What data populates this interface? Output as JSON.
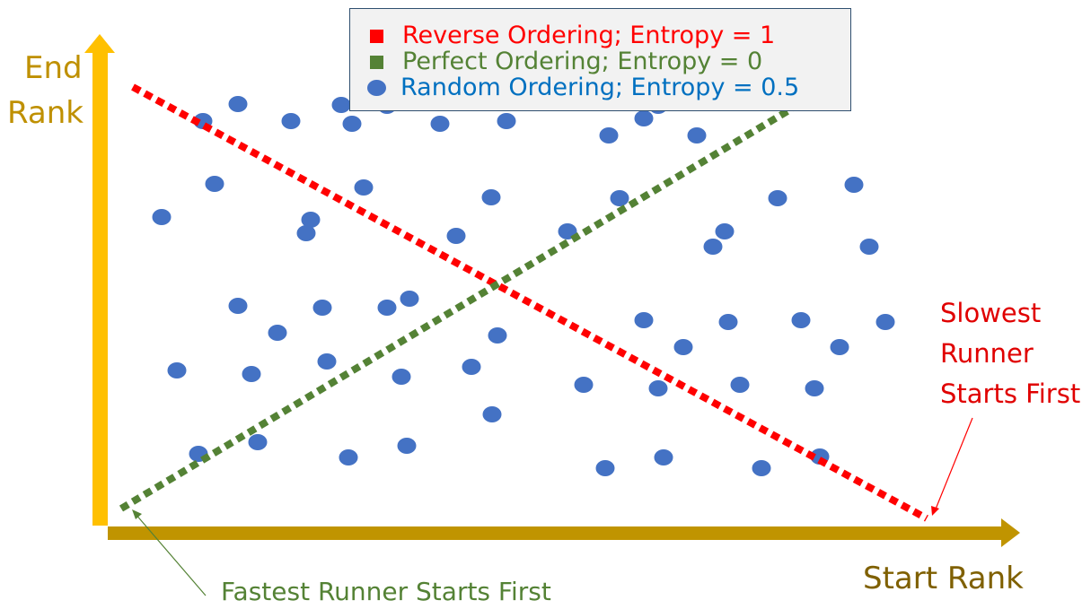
{
  "axes": {
    "y_label_line1": "End",
    "y_label_line2": "Rank",
    "x_label": "Start Rank",
    "axis_color": "#c09400",
    "y_axis_color": "#ffc000"
  },
  "legend": {
    "items": [
      {
        "label": "Reverse Ordering; Entropy = 1",
        "color": "#ff0000",
        "marker": "square"
      },
      {
        "label": "Perfect Ordering; Entropy = 0",
        "color": "#548235",
        "marker": "square"
      },
      {
        "label": "Random Ordering; Entropy = 0.5",
        "color": "#0070c0",
        "marker": "circle",
        "marker_color": "#4472c4"
      }
    ]
  },
  "annotations": {
    "slowest_line1": "Slowest",
    "slowest_line2": "Runner",
    "slowest_line3": "Starts First",
    "fastest": "Fastest Runner Starts First"
  },
  "colors": {
    "reverse_line": "#ff0000",
    "perfect_line": "#548235",
    "dots": "#4472c4"
  },
  "chart_data": {
    "type": "scatter",
    "x": [
      226,
      265,
      324,
      380,
      392,
      431,
      490,
      564,
      678,
      717,
      733,
      776,
      239,
      405,
      547,
      690,
      866,
      951,
      180,
      346,
      341,
      508,
      632,
      807,
      794,
      968,
      265,
      359,
      431,
      456,
      309,
      554,
      717,
      811,
      892,
      986,
      197,
      280,
      364,
      447,
      525,
      650,
      733,
      824,
      907,
      935,
      761,
      548,
      221,
      287,
      388,
      453,
      674,
      739,
      848,
      913
    ],
    "y": [
      135,
      116,
      135,
      117,
      138,
      118,
      138,
      135,
      151,
      132,
      118,
      151,
      205,
      209,
      220,
      221,
      221,
      206,
      242,
      245,
      260,
      263,
      258,
      258,
      275,
      275,
      341,
      343,
      343,
      333,
      371,
      374,
      357,
      359,
      357,
      359,
      413,
      417,
      403,
      420,
      409,
      429,
      433,
      429,
      433,
      387,
      387,
      462,
      506,
      493,
      510,
      497,
      522,
      510,
      522,
      509
    ],
    "lines": [
      {
        "name": "Reverse Ordering; Entropy = 1",
        "points": [
          [
            148,
            97
          ],
          [
            1032,
            578
          ]
        ]
      },
      {
        "name": "Perfect Ordering; Entropy = 0",
        "points": [
          [
            135,
            567
          ],
          [
            882,
            121
          ]
        ]
      }
    ]
  }
}
